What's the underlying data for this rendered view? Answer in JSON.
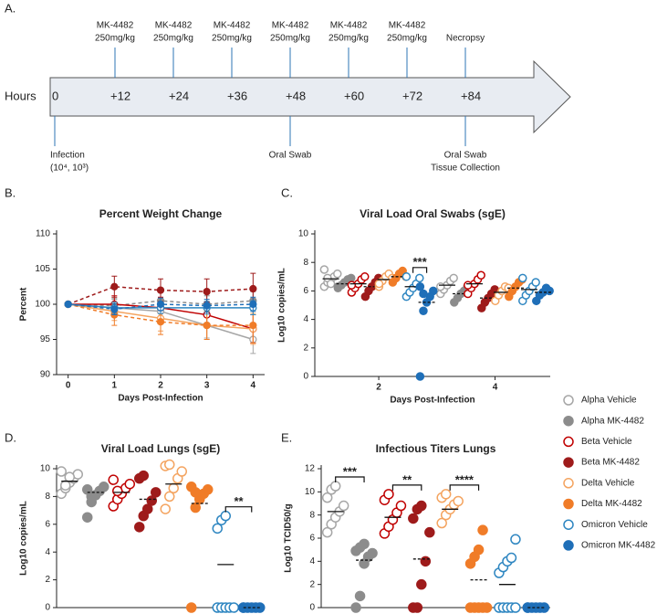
{
  "panel_labels": [
    "A.",
    "B.",
    "C.",
    "D.",
    "E."
  ],
  "timeline": {
    "axis_label": "Hours",
    "times": [
      "0",
      "+12",
      "+24",
      "+36",
      "+48",
      "+60",
      "+72",
      "+84"
    ],
    "above": [
      {
        "at": 1,
        "lines": [
          "MK-4482",
          "250mg/kg"
        ]
      },
      {
        "at": 2,
        "lines": [
          "MK-4482",
          "250mg/kg"
        ]
      },
      {
        "at": 3,
        "lines": [
          "MK-4482",
          "250mg/kg"
        ]
      },
      {
        "at": 4,
        "lines": [
          "MK-4482",
          "250mg/kg"
        ]
      },
      {
        "at": 5,
        "lines": [
          "MK-4482",
          "250mg/kg"
        ]
      },
      {
        "at": 6,
        "lines": [
          "MK-4482",
          "250mg/kg"
        ]
      },
      {
        "at": 7,
        "lines": [
          "Necropsy"
        ]
      }
    ],
    "below": [
      {
        "at": 0,
        "lines": [
          "Infection",
          "(10⁴, 10³)"
        ]
      },
      {
        "at": 4,
        "lines": [
          "Oral Swab"
        ]
      },
      {
        "at": 7,
        "lines": [
          "Oral Swab",
          "Tissue Collection"
        ]
      }
    ]
  },
  "chart_data": [
    {
      "type": "line",
      "title": "Percent Weight Change",
      "xlabel": "Days Post-Infection",
      "ylabel": "Percent",
      "x": [
        0,
        1,
        2,
        3,
        4
      ],
      "xlim": [
        -0.25,
        4.25
      ],
      "xticks": [
        0,
        1,
        2,
        3,
        4
      ],
      "ylim": [
        90,
        110
      ],
      "yticks": [
        90,
        95,
        100,
        105,
        110
      ],
      "series": [
        {
          "name": "Alpha Vehicle",
          "color": "#a6a6a6",
          "filled": false,
          "values": [
            100,
            99.5,
            99,
            97,
            95
          ],
          "errors": [
            0,
            1.2,
            1.5,
            1.8,
            2
          ]
        },
        {
          "name": "Alpha MK-4482",
          "color": "#8c8c8c",
          "filled": true,
          "values": [
            100,
            99.8,
            100.5,
            100,
            100.5
          ],
          "errors": [
            0,
            1,
            1.2,
            1.2,
            1.3
          ]
        },
        {
          "name": "Beta Vehicle",
          "color": "#c00000",
          "filled": false,
          "values": [
            100,
            100,
            99.5,
            98.5,
            96.5
          ],
          "errors": [
            0,
            1.2,
            1.5,
            1.8,
            2
          ]
        },
        {
          "name": "Beta MK-4482",
          "color": "#9e1b1b",
          "filled": true,
          "values": [
            100,
            102.5,
            102,
            101.8,
            102.2
          ],
          "errors": [
            0,
            1.5,
            1.6,
            1.8,
            2.2
          ]
        },
        {
          "name": "Delta Vehicle",
          "color": "#f4a460",
          "filled": false,
          "values": [
            100,
            99,
            98,
            97,
            96.5
          ],
          "errors": [
            0,
            1.3,
            1.8,
            2,
            2.2
          ]
        },
        {
          "name": "Delta MK-4482",
          "color": "#f07c28",
          "filled": true,
          "values": [
            100,
            98.5,
            97.5,
            97,
            97
          ],
          "errors": [
            0,
            1.5,
            1.8,
            2,
            2.5
          ]
        },
        {
          "name": "Omicron Vehicle",
          "color": "#2e86c1",
          "filled": false,
          "values": [
            100,
            99.5,
            99.5,
            99.5,
            99.5
          ],
          "errors": [
            0,
            0.8,
            0.8,
            0.9,
            1
          ]
        },
        {
          "name": "Omicron MK-4482",
          "color": "#1f6fb8",
          "filled": true,
          "values": [
            100,
            99.3,
            100,
            99.8,
            100
          ],
          "errors": [
            0,
            0.8,
            0.9,
            0.9,
            1
          ]
        }
      ]
    },
    {
      "type": "strip",
      "title": "Viral Load Oral Swabs (sgE)",
      "xlabel": "Days Post-Infection",
      "ylabel": "Log10 copies/mL",
      "xlim": [
        0.9,
        4.95
      ],
      "xticks": [
        2,
        4
      ],
      "ylim": [
        0,
        10
      ],
      "yticks": [
        0,
        2,
        4,
        6,
        8,
        10
      ],
      "series": [
        {
          "values": [
            [
              6.3,
              6.6,
              6.8,
              7.0,
              7.2,
              7.5,
              6.9,
              6.5
            ],
            [
              5.8,
              6.1,
              6.4,
              6.7,
              6.9,
              6.3
            ]
          ],
          "means": [
            6.85,
            6.4
          ]
        },
        {
          "values": [
            [
              6.2,
              6.4,
              6.6,
              6.8,
              6.9,
              6.3
            ],
            [
              5.2,
              5.5,
              5.8,
              6.0,
              6.3
            ]
          ],
          "means": [
            6.5,
            5.8
          ]
        },
        {
          "values": [
            [
              5.9,
              6.2,
              6.5,
              6.8,
              7.0,
              6.4
            ],
            [
              5.8,
              6.2,
              6.5,
              6.8,
              7.1,
              6.4
            ]
          ],
          "means": [
            6.5,
            6.5
          ]
        },
        {
          "values": [
            [
              5.6,
              6.0,
              6.3,
              6.6,
              6.9
            ],
            [
              4.8,
              5.2,
              5.5,
              5.8,
              6.1
            ]
          ],
          "means": [
            6.3,
            5.5
          ]
        },
        {
          "values": [
            [
              6.3,
              6.7,
              7.0,
              7.2,
              6.9,
              6.5
            ],
            [
              5.3,
              5.7,
              6.0,
              6.3,
              6.2
            ]
          ],
          "means": [
            6.8,
            5.9
          ]
        },
        {
          "values": [
            [
              6.6,
              6.9,
              7.2,
              7.4,
              7.0
            ],
            [
              5.6,
              6.0,
              6.3,
              6.6,
              6.8
            ]
          ],
          "means": [
            7.0,
            6.2
          ]
        },
        {
          "values": [
            [
              5.6,
              5.9,
              6.2,
              6.5,
              6.9,
              7.0
            ],
            [
              5.3,
              5.7,
              6.0,
              6.3,
              6.6,
              6.9
            ]
          ],
          "means": [
            6.3,
            6.1
          ]
        },
        {
          "values": [
            [
              0,
              4.6,
              5.2,
              5.6,
              6.0,
              6.3,
              5.8
            ],
            [
              5.3,
              5.7,
              5.9,
              6.2,
              6.0
            ]
          ],
          "means": [
            5.2,
            5.9
          ]
        }
      ],
      "annotations": [
        {
          "text": "***",
          "category": 0,
          "groups": [
            6,
            7
          ]
        }
      ]
    },
    {
      "type": "strip",
      "title": "Viral Load Lungs (sgE)",
      "ylabel": "Log10 copies/mL",
      "ylim": [
        0,
        10
      ],
      "yticks": [
        0,
        2,
        4,
        6,
        8,
        10
      ],
      "series": [
        {
          "values": [
            8.2,
            8.6,
            9.0,
            9.3,
            9.6,
            9.8,
            8.8,
            9.4
          ],
          "mean": 9.1
        },
        {
          "values": [
            6.5,
            7.6,
            8.1,
            8.4,
            8.7,
            8.5,
            8.0
          ],
          "mean": 8.3
        },
        {
          "values": [
            7.3,
            7.8,
            8.2,
            8.6,
            8.9,
            9.2,
            8.4
          ],
          "mean": 8.3
        },
        {
          "values": [
            5.8,
            6.6,
            7.1,
            7.7,
            8.3,
            9.3,
            9.5
          ],
          "mean": 7.8
        },
        {
          "values": [
            7.1,
            8.0,
            8.6,
            9.3,
            9.8,
            10.2,
            10.3
          ],
          "mean": 8.9
        },
        {
          "values": [
            0,
            7.2,
            7.8,
            8.2,
            8.5,
            8.7,
            8.3
          ],
          "mean": 7.5
        },
        {
          "values": [
            0,
            0,
            0,
            0,
            0,
            5.7,
            6.3,
            6.6
          ],
          "mean": 3.1
        },
        {
          "values": [
            0,
            0,
            0,
            0,
            0,
            0
          ],
          "mean": 0
        }
      ],
      "annotations": [
        {
          "text": "**",
          "groups": [
            6,
            7
          ]
        }
      ]
    },
    {
      "type": "strip",
      "title": "Infectious Titers Lungs",
      "ylabel": "Log10 TCID50/g",
      "ylim": [
        0,
        12
      ],
      "yticks": [
        0,
        2,
        4,
        6,
        8,
        10,
        12
      ],
      "series": [
        {
          "values": [
            6.5,
            7.2,
            7.8,
            8.3,
            8.8,
            9.5,
            10.2,
            10.5
          ],
          "mean": 8.3
        },
        {
          "values": [
            0,
            1,
            3.8,
            4.4,
            4.7,
            4.9,
            5.2,
            5.5
          ],
          "mean": 4.1
        },
        {
          "values": [
            6.4,
            7.0,
            7.6,
            8.2,
            8.8,
            9.3,
            9.8
          ],
          "mean": 7.8
        },
        {
          "values": [
            0,
            0,
            2.0,
            4.0,
            6.5,
            7.7,
            8.5,
            8.8
          ],
          "mean": 4.2
        },
        {
          "values": [
            7.3,
            8.0,
            8.5,
            8.9,
            9.2,
            9.5,
            9.8
          ],
          "mean": 8.5
        },
        {
          "values": [
            0,
            0,
            0,
            0,
            0,
            3.8,
            4.4,
            5.0,
            6.7
          ],
          "mean": 2.4
        },
        {
          "values": [
            0,
            0,
            0,
            0,
            0,
            3.0,
            3.5,
            4.0,
            4.3,
            5.9
          ],
          "mean": 2.0
        },
        {
          "values": [
            0,
            0,
            0,
            0,
            0,
            0
          ],
          "mean": 0
        }
      ],
      "annotations": [
        {
          "text": "***",
          "groups": [
            0,
            1
          ]
        },
        {
          "text": "**",
          "groups": [
            2,
            3
          ]
        },
        {
          "text": "****",
          "groups": [
            4,
            5
          ]
        }
      ]
    }
  ]
}
